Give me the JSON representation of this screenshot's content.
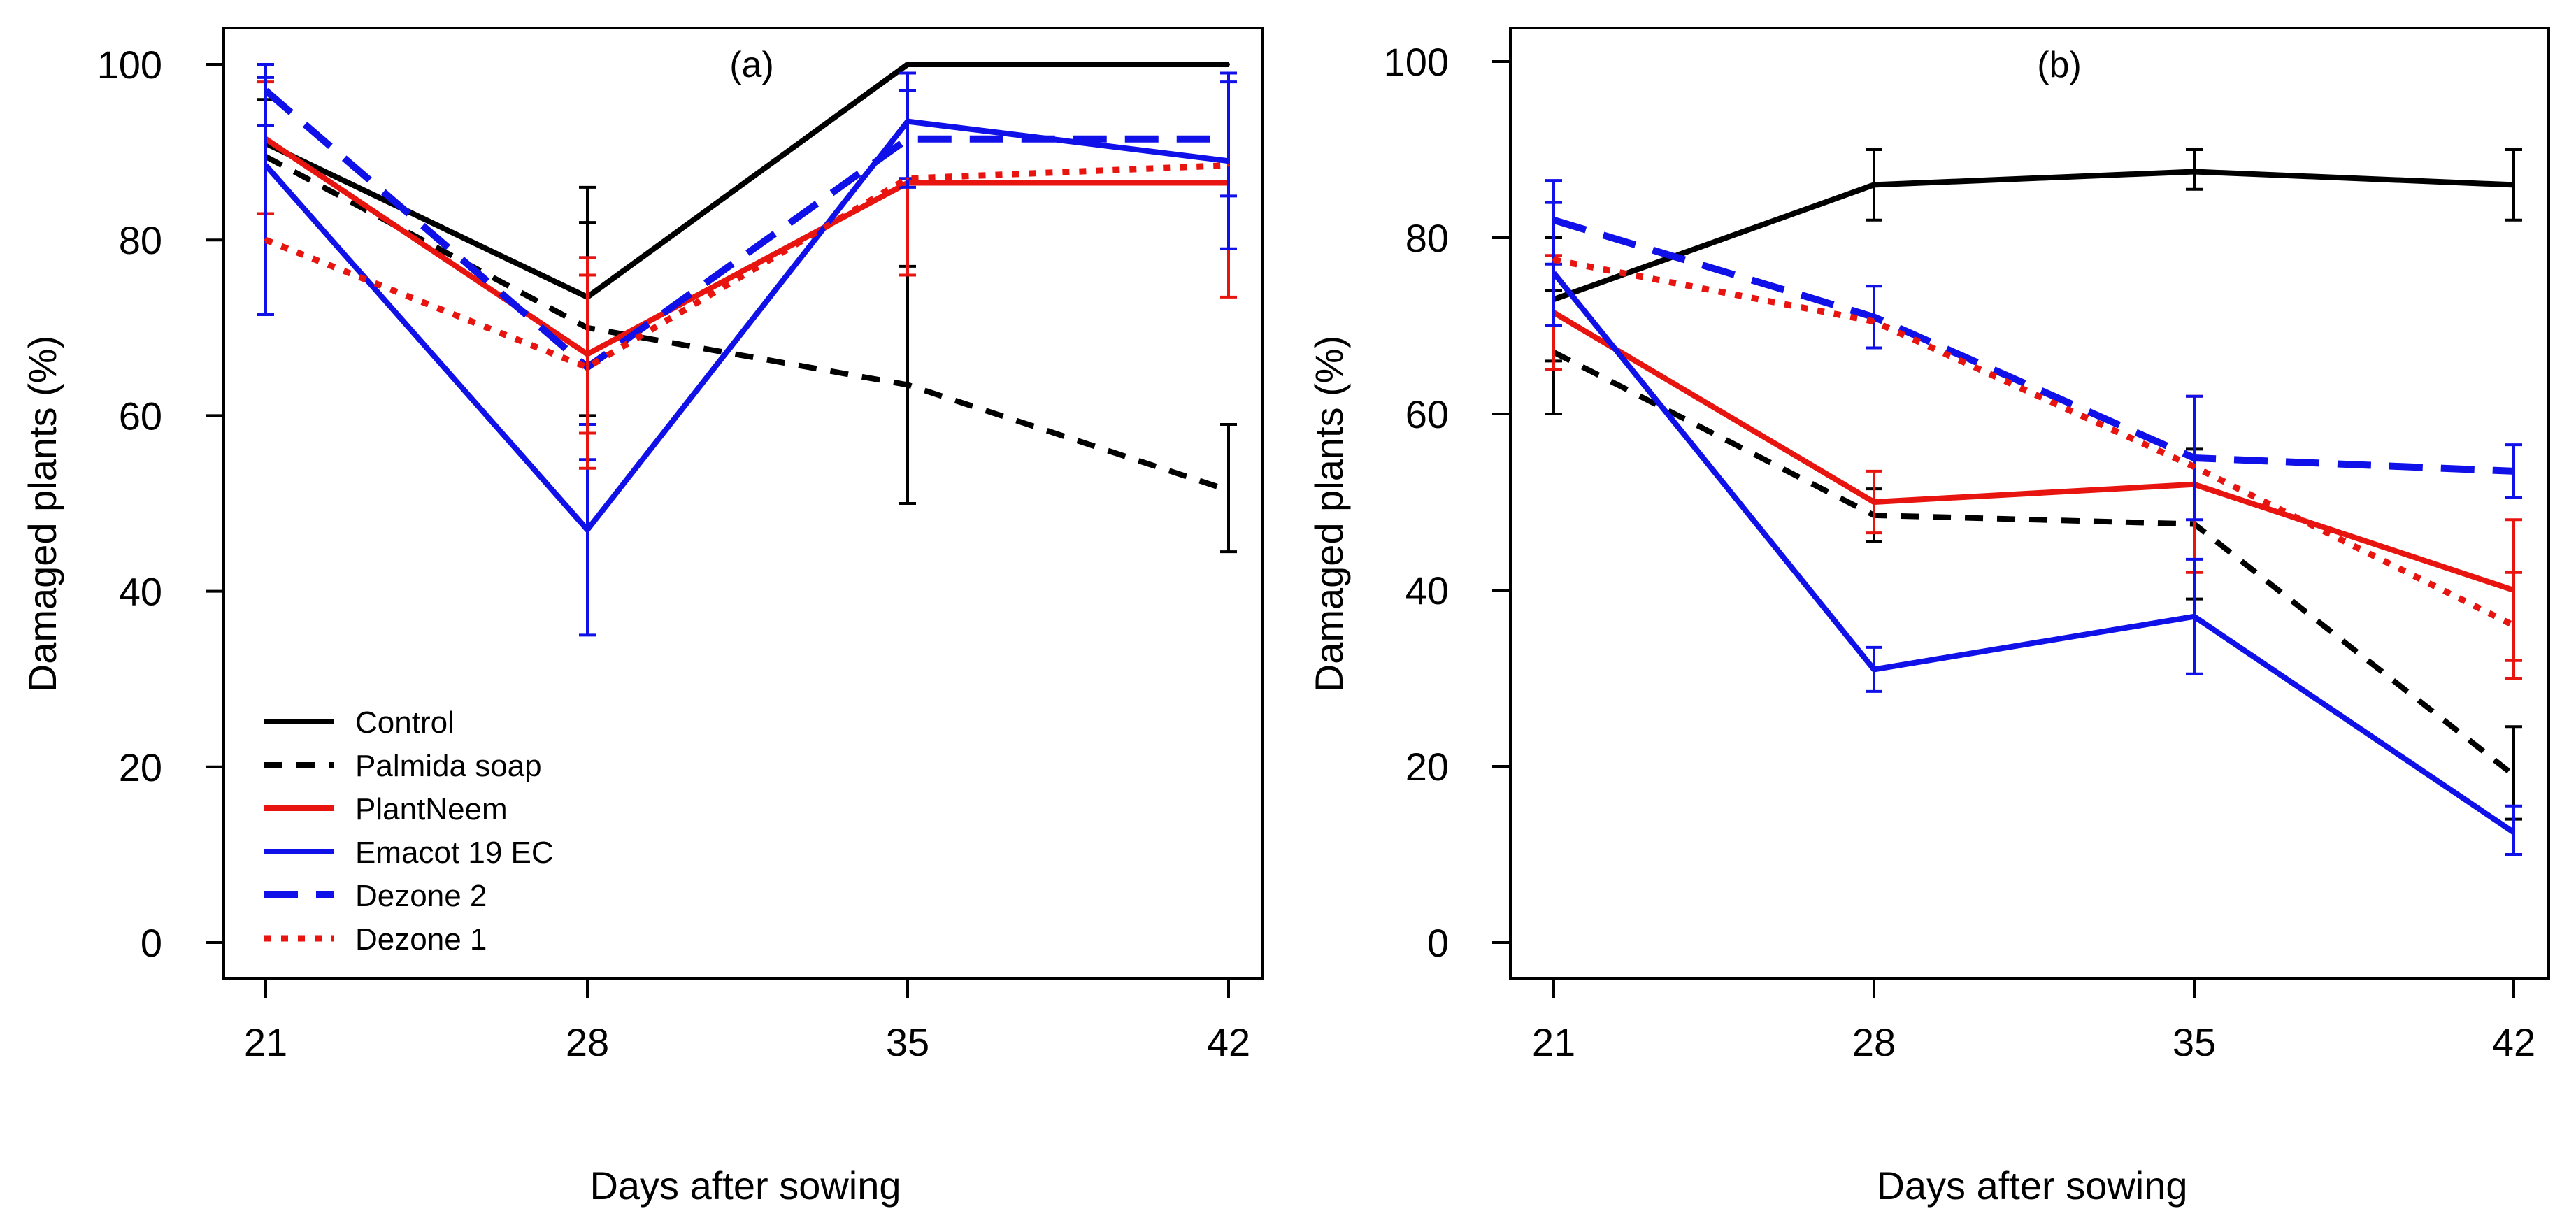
{
  "legend": {
    "position": "bottom-left of panel (a)",
    "entries": [
      {
        "label": "Control",
        "color": "#000000",
        "style": "solid"
      },
      {
        "label": "Palmida soap",
        "color": "#000000",
        "style": "dashed"
      },
      {
        "label": "PlantNeem",
        "color": "#e8140f",
        "style": "solid"
      },
      {
        "label": "Emacot 19 EC",
        "color": "#1010e8",
        "style": "solid"
      },
      {
        "label": "Dezone 2",
        "color": "#1010e8",
        "style": "longdash"
      },
      {
        "label": "Dezone 1",
        "color": "#e8140f",
        "style": "dotted"
      }
    ]
  },
  "chart_data": [
    {
      "type": "line",
      "panel_label": "(a)",
      "xlabel": "Days after sowing",
      "ylabel": "Damaged plants (%)",
      "x": [
        21,
        28,
        35,
        42
      ],
      "xticks": [
        "21",
        "28",
        "35",
        "42"
      ],
      "yticks": [
        "0",
        "20",
        "40",
        "60",
        "80",
        "100"
      ],
      "ylim": [
        0,
        100
      ],
      "grid": false,
      "series": [
        {
          "name": "Control",
          "values": [
            91,
            73.5,
            100,
            100
          ],
          "err_lo": [
            null,
            60,
            null,
            null
          ],
          "err_hi": [
            null,
            86,
            null,
            null
          ]
        },
        {
          "name": "Palmida soap",
          "values": [
            89.5,
            70,
            63.5,
            51.5
          ],
          "err_lo": [
            83,
            58,
            50,
            44.5
          ],
          "err_hi": [
            96,
            82,
            77,
            59
          ]
        },
        {
          "name": "PlantNeem",
          "values": [
            91.5,
            67,
            86.5,
            86.5
          ],
          "err_lo": [
            83,
            58,
            76,
            73.5
          ],
          "err_hi": [
            98,
            76,
            97,
            99
          ]
        },
        {
          "name": "Emacot 19 EC",
          "values": [
            88.5,
            47,
            93.5,
            89
          ],
          "err_lo": [
            71.5,
            35,
            87,
            79
          ],
          "err_hi": [
            98.5,
            59,
            99,
            99
          ]
        },
        {
          "name": "Dezone 2",
          "values": [
            97,
            65.5,
            91.5,
            91.5
          ],
          "err_lo": [
            93,
            55,
            86,
            85
          ],
          "err_hi": [
            100,
            78,
            97,
            98
          ]
        },
        {
          "name": "Dezone 1",
          "values": [
            80,
            65.5,
            87,
            88.5
          ],
          "err_lo": [
            null,
            54,
            null,
            null
          ],
          "err_hi": [
            null,
            78,
            null,
            null
          ]
        }
      ]
    },
    {
      "type": "line",
      "panel_label": "(b)",
      "xlabel": "Days after sowing",
      "ylabel": "Damaged plants (%)",
      "x": [
        21,
        28,
        35,
        42
      ],
      "xticks": [
        "21",
        "28",
        "35",
        "42"
      ],
      "yticks": [
        "0",
        "20",
        "40",
        "60",
        "80",
        "100"
      ],
      "ylim": [
        0,
        100
      ],
      "grid": false,
      "series": [
        {
          "name": "Control",
          "values": [
            73,
            86,
            87.5,
            86
          ],
          "err_lo": [
            66,
            82,
            85.5,
            82
          ],
          "err_hi": [
            80,
            90,
            90,
            90
          ]
        },
        {
          "name": "Palmida soap",
          "values": [
            67,
            48.5,
            47.5,
            19
          ],
          "err_lo": [
            60,
            45.5,
            39,
            14
          ],
          "err_hi": [
            74,
            51.5,
            56,
            24.5
          ]
        },
        {
          "name": "PlantNeem",
          "values": [
            71.5,
            50,
            52,
            40
          ],
          "err_lo": [
            65,
            46.5,
            42,
            32
          ],
          "err_hi": [
            78,
            53.5,
            62,
            48
          ]
        },
        {
          "name": "Emacot 19 EC",
          "values": [
            76,
            31,
            37,
            12.5
          ],
          "err_lo": [
            70,
            28.5,
            30.5,
            10
          ],
          "err_hi": [
            84,
            33.5,
            43.5,
            15.5
          ]
        },
        {
          "name": "Dezone 2",
          "values": [
            82,
            71,
            55,
            53.5
          ],
          "err_lo": [
            77,
            67.5,
            48,
            50.5
          ],
          "err_hi": [
            86.5,
            74.5,
            62,
            56.5
          ]
        },
        {
          "name": "Dezone 1",
          "values": [
            77.5,
            70.5,
            54,
            36
          ],
          "err_lo": [
            null,
            null,
            null,
            30
          ],
          "err_hi": [
            null,
            null,
            null,
            42
          ]
        }
      ]
    }
  ]
}
